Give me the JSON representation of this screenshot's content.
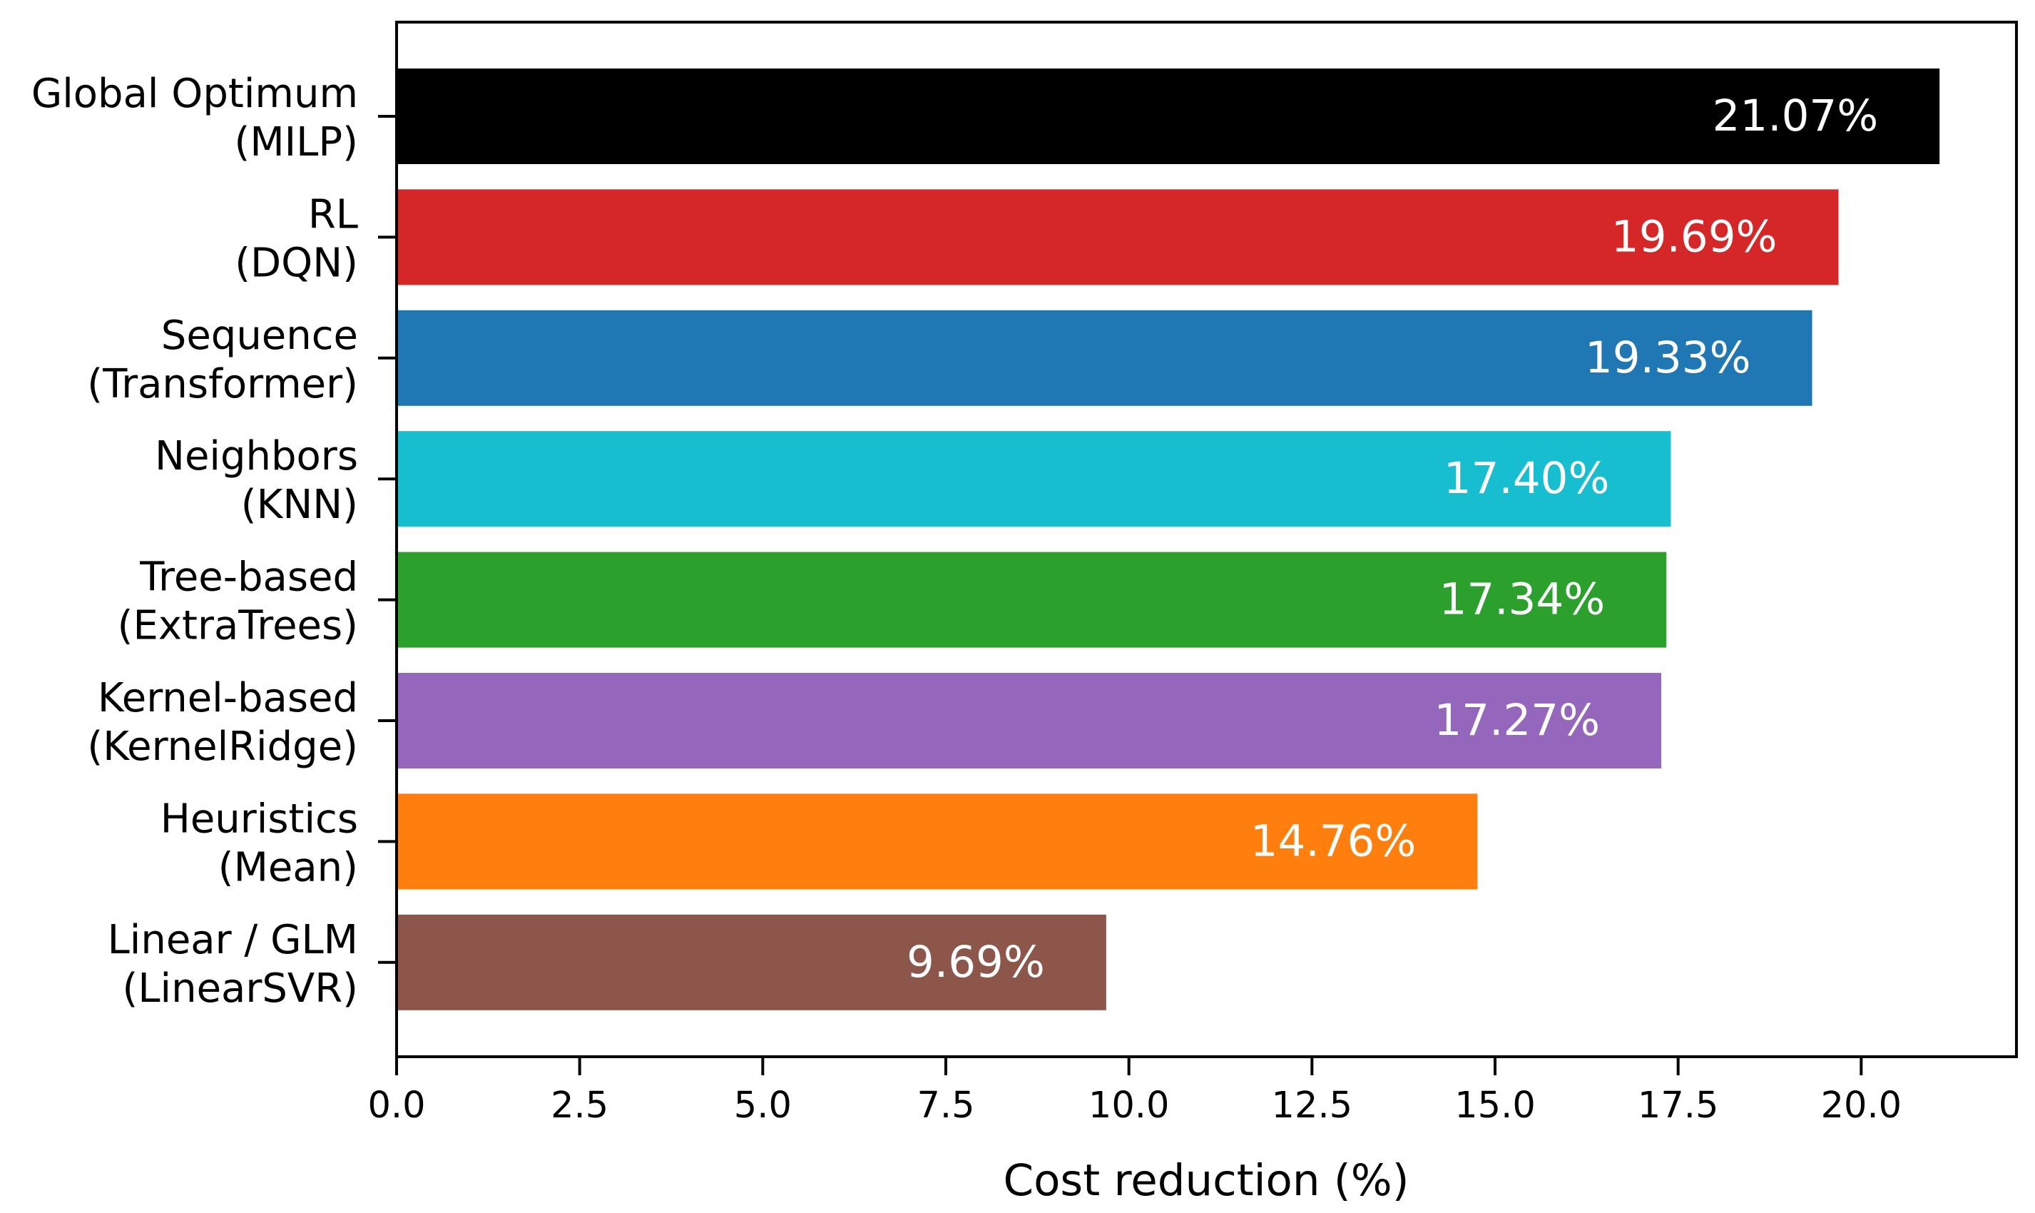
{
  "chart_data": {
    "type": "bar",
    "orientation": "horizontal",
    "title": "",
    "xlabel": "Cost reduction (%)",
    "ylabel": "",
    "xlim": [
      0,
      22.12
    ],
    "xticks": [
      0.0,
      2.5,
      5.0,
      7.5,
      10.0,
      12.5,
      15.0,
      17.5,
      20.0
    ],
    "xtick_labels": [
      "0.0",
      "2.5",
      "5.0",
      "7.5",
      "10.0",
      "12.5",
      "15.0",
      "17.5",
      "20.0"
    ],
    "grid": false,
    "bars": [
      {
        "line1": "Global Optimum",
        "line2": "(MILP)",
        "value": 21.07,
        "label": "21.07%",
        "color": "#000000"
      },
      {
        "line1": "RL",
        "line2": "(DQN)",
        "value": 19.69,
        "label": "19.69%",
        "color": "#d62728"
      },
      {
        "line1": "Sequence",
        "line2": "(Transformer)",
        "value": 19.33,
        "label": "19.33%",
        "color": "#1f77b4"
      },
      {
        "line1": "Neighbors",
        "line2": "(KNN)",
        "value": 17.4,
        "label": "17.40%",
        "color": "#17becf"
      },
      {
        "line1": "Tree-based",
        "line2": "(ExtraTrees)",
        "value": 17.34,
        "label": "17.34%",
        "color": "#2ca02c"
      },
      {
        "line1": "Kernel-based",
        "line2": "(KernelRidge)",
        "value": 17.27,
        "label": "17.27%",
        "color": "#9467bd"
      },
      {
        "line1": "Heuristics",
        "line2": "(Mean)",
        "value": 14.76,
        "label": "14.76%",
        "color": "#ff7f0e"
      },
      {
        "line1": "Linear / GLM",
        "line2": "(LinearSVR)",
        "value": 9.69,
        "label": "9.69%",
        "color": "#8c564b"
      }
    ]
  }
}
